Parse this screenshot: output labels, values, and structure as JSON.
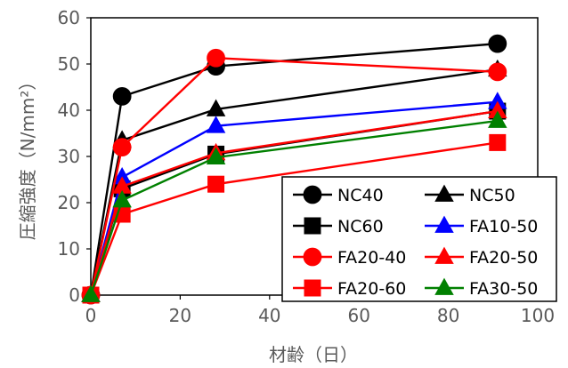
{
  "chart_data": {
    "type": "line",
    "title": "",
    "xlabel": "材齢（日）",
    "ylabel": "圧縮強度（N/mm²）",
    "xlim": [
      0,
      100
    ],
    "ylim": [
      0,
      60
    ],
    "xticks": [
      0,
      20,
      40,
      60,
      80,
      100
    ],
    "yticks": [
      0,
      10,
      20,
      30,
      40,
      50,
      60
    ],
    "grid": false,
    "legend_position": "bottom-right",
    "legend_columns": 2,
    "series": [
      {
        "name": "NC40",
        "color": "#000000",
        "marker": "circle",
        "x": [
          0,
          7,
          28,
          91
        ],
        "values": [
          0,
          43.0,
          49.5,
          54.4
        ]
      },
      {
        "name": "NC50",
        "color": "#000000",
        "marker": "triangle",
        "x": [
          0,
          7,
          28,
          91
        ],
        "values": [
          0,
          33.5,
          40.2,
          48.8
        ]
      },
      {
        "name": "NC60",
        "color": "#000000",
        "marker": "square",
        "x": [
          0,
          7,
          28,
          91
        ],
        "values": [
          0,
          23.0,
          30.5,
          39.8
        ]
      },
      {
        "name": "FA10-50",
        "color": "#0000ff",
        "marker": "triangle",
        "x": [
          0,
          7,
          28,
          91
        ],
        "values": [
          0,
          25.5,
          36.6,
          41.8
        ]
      },
      {
        "name": "FA20-40",
        "color": "#ff0000",
        "marker": "circle",
        "x": [
          0,
          7,
          28,
          91
        ],
        "values": [
          0,
          32.0,
          51.3,
          48.3
        ]
      },
      {
        "name": "FA20-50",
        "color": "#ff0000",
        "marker": "triangle",
        "x": [
          0,
          7,
          28,
          91
        ],
        "values": [
          0,
          23.5,
          30.7,
          39.8
        ]
      },
      {
        "name": "FA20-60",
        "color": "#ff0000",
        "marker": "square",
        "x": [
          0,
          7,
          28,
          91
        ],
        "values": [
          0,
          17.5,
          24.0,
          33.0
        ]
      },
      {
        "name": "FA30-50",
        "color": "#008000",
        "marker": "triangle",
        "x": [
          0,
          7,
          28,
          91
        ],
        "values": [
          0,
          20.5,
          29.8,
          37.7
        ]
      }
    ]
  }
}
